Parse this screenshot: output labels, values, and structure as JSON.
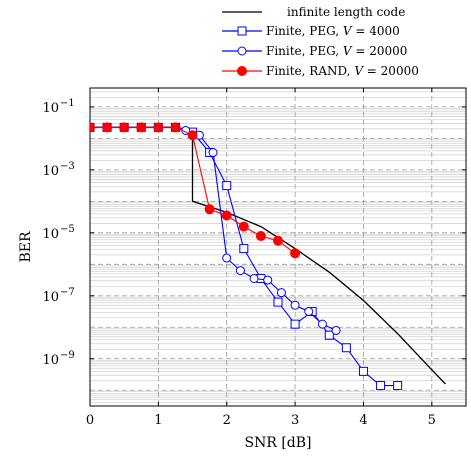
{
  "chart_data": {
    "type": "line",
    "title": "",
    "xlabel": "SNR [dB]",
    "ylabel": "BER",
    "xlim": [
      0,
      5.5
    ],
    "ylim_log10": [
      -10.5,
      -0.4
    ],
    "yscale": "log",
    "grid": "on (major dashed, minor solid gray)",
    "legend_position": "top-right (outside plot)",
    "x_ticks": [
      0,
      1,
      2,
      3,
      4,
      5
    ],
    "x_tick_labels": [
      "0",
      "1",
      "2",
      "3",
      "4",
      "5"
    ],
    "y_ticks": [
      -1,
      -3,
      -5,
      -7,
      -9
    ],
    "y_tick_base": "10",
    "y_tick_exponents": [
      "−1",
      "−3",
      "−5",
      "−7",
      "−9"
    ],
    "legend": [
      {
        "text": "infinite length code",
        "series": 0
      },
      {
        "text_main": "Finite, PEG, ",
        "var": "V",
        "text_tail": " = 4000",
        "series": 1
      },
      {
        "text_main": "Finite, PEG, ",
        "var": "V",
        "text_tail": " = 20000",
        "series": 2
      },
      {
        "text_main": "Finite, RAND, ",
        "var": "V",
        "text_tail": " = 20000",
        "series": 3
      }
    ],
    "series": [
      {
        "name": "infinite length code",
        "color": "#000000",
        "marker": "none",
        "x": [
          0,
          1.25,
          1.5,
          1.5,
          2.0,
          2.5,
          3.0,
          3.5,
          4.0,
          4.5,
          5.0,
          5.2
        ],
        "y": [
          0.0224,
          0.0224,
          0.0178,
          0.0001,
          4.47e-05,
          1.58e-05,
          3.16e-06,
          5.62e-07,
          7.08e-08,
          6.31e-09,
          4.47e-10,
          1.58e-10
        ]
      },
      {
        "name": "Finite, PEG, V = 4000",
        "color": "#0000ff",
        "marker": "square",
        "x": [
          0,
          0.25,
          0.5,
          0.75,
          1.0,
          1.25,
          1.5,
          1.75,
          2.0,
          2.25,
          2.5,
          2.75,
          3.0,
          3.25,
          3.5,
          3.75,
          4.0,
          4.25,
          4.5
        ],
        "y": [
          0.0224,
          0.0224,
          0.0224,
          0.0224,
          0.0224,
          0.0224,
          0.0158,
          0.00355,
          0.000316,
          3.16e-06,
          3.55e-07,
          6.31e-08,
          1.26e-08,
          3.16e-08,
          5.62e-09,
          2.24e-09,
          3.98e-10,
          1.41e-10,
          1.41e-10
        ]
      },
      {
        "name": "Finite, PEG, V = 20000",
        "color": "#0000ff",
        "marker": "circle",
        "x": [
          0,
          0.25,
          0.5,
          0.75,
          1.0,
          1.25,
          1.4,
          1.6,
          1.8,
          2.0,
          2.2,
          2.4,
          2.6,
          2.8,
          3.0,
          3.2,
          3.4,
          3.6
        ],
        "y": [
          0.0224,
          0.0224,
          0.0224,
          0.0224,
          0.0224,
          0.0224,
          0.0178,
          0.0126,
          0.00355,
          1.58e-06,
          6.31e-07,
          3.55e-07,
          3.16e-07,
          1.26e-07,
          5.01e-08,
          3.16e-08,
          1.26e-08,
          7.94e-09
        ]
      },
      {
        "name": "Finite, RAND, V = 20000",
        "color": "#ff0000",
        "marker": "circle-filled",
        "x": [
          0,
          0.25,
          0.5,
          0.75,
          1.0,
          1.25,
          1.5,
          1.75,
          2.0,
          2.25,
          2.5,
          2.75,
          3.0
        ],
        "y": [
          0.0224,
          0.0224,
          0.0224,
          0.0224,
          0.0224,
          0.0224,
          0.0126,
          5.62e-05,
          3.55e-05,
          1.58e-05,
          7.94e-06,
          5.62e-06,
          2.24e-06
        ]
      }
    ]
  }
}
